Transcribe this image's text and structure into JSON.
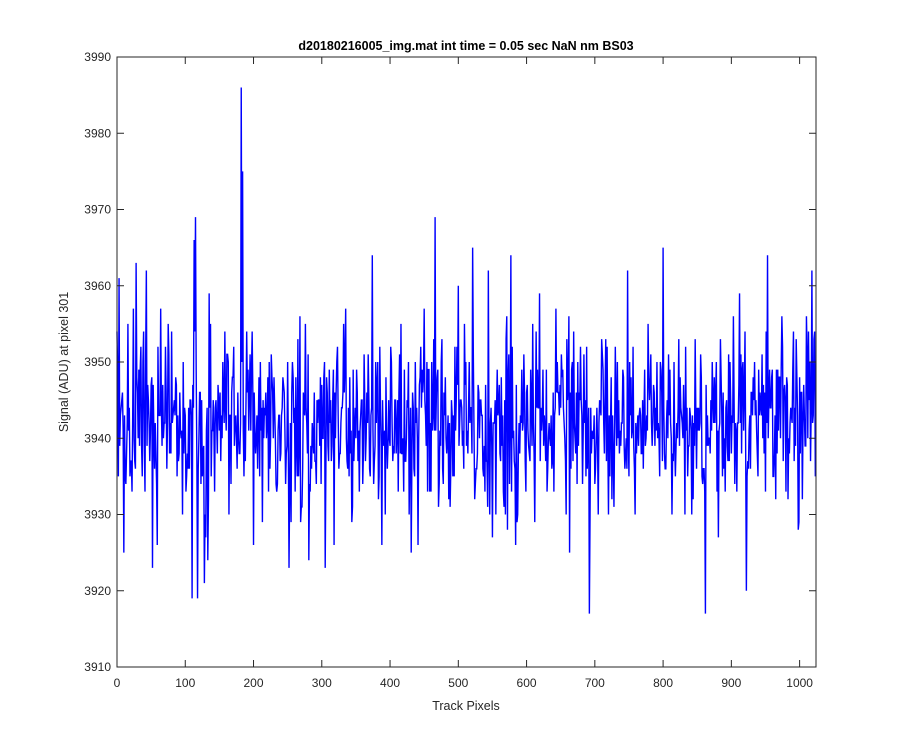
{
  "chart_data": {
    "type": "line",
    "title": "d20180216005_img.mat int time = 0.05 sec  NaN nm BS03",
    "xlabel": "Track Pixels",
    "ylabel": "Signal (ADU) at pixel 301",
    "xlim": [
      0,
      1024
    ],
    "ylim": [
      3910,
      3990
    ],
    "xticks": [
      0,
      100,
      200,
      300,
      400,
      500,
      600,
      700,
      800,
      900,
      1000
    ],
    "yticks": [
      3910,
      3920,
      3930,
      3940,
      3950,
      3960,
      3970,
      3980,
      3990
    ],
    "grid": false,
    "legend": "none",
    "series": [
      {
        "color": "#0000ff",
        "noise": {
          "count": 1024,
          "mean": 3942.5,
          "min": 3924,
          "max": 3962
        },
        "peaks": [
          [
            0,
            3954
          ],
          [
            3,
            3961
          ],
          [
            6,
            3944
          ],
          [
            10,
            3925
          ],
          [
            22,
            3933
          ],
          [
            28,
            3963
          ],
          [
            43,
            3962
          ],
          [
            52,
            3923
          ],
          [
            59,
            3926
          ],
          [
            113,
            3966
          ],
          [
            115,
            3969
          ],
          [
            110,
            3919
          ],
          [
            118,
            3919
          ],
          [
            128,
            3921
          ],
          [
            133,
            3924
          ],
          [
            182,
            3986
          ],
          [
            184,
            3975
          ],
          [
            200,
            3926
          ],
          [
            252,
            3923
          ],
          [
            305,
            3923
          ],
          [
            374,
            3964
          ],
          [
            388,
            3926
          ],
          [
            441,
            3926
          ],
          [
            466,
            3969
          ],
          [
            500,
            3960
          ],
          [
            521,
            3965
          ],
          [
            577,
            3964
          ],
          [
            619,
            3959
          ],
          [
            692,
            3917
          ],
          [
            787,
            3946
          ],
          [
            800,
            3965
          ],
          [
            862,
            3917
          ],
          [
            912,
            3959
          ],
          [
            922,
            3920
          ],
          [
            953,
            3964
          ],
          [
            1021,
            3953
          ]
        ]
      }
    ]
  }
}
